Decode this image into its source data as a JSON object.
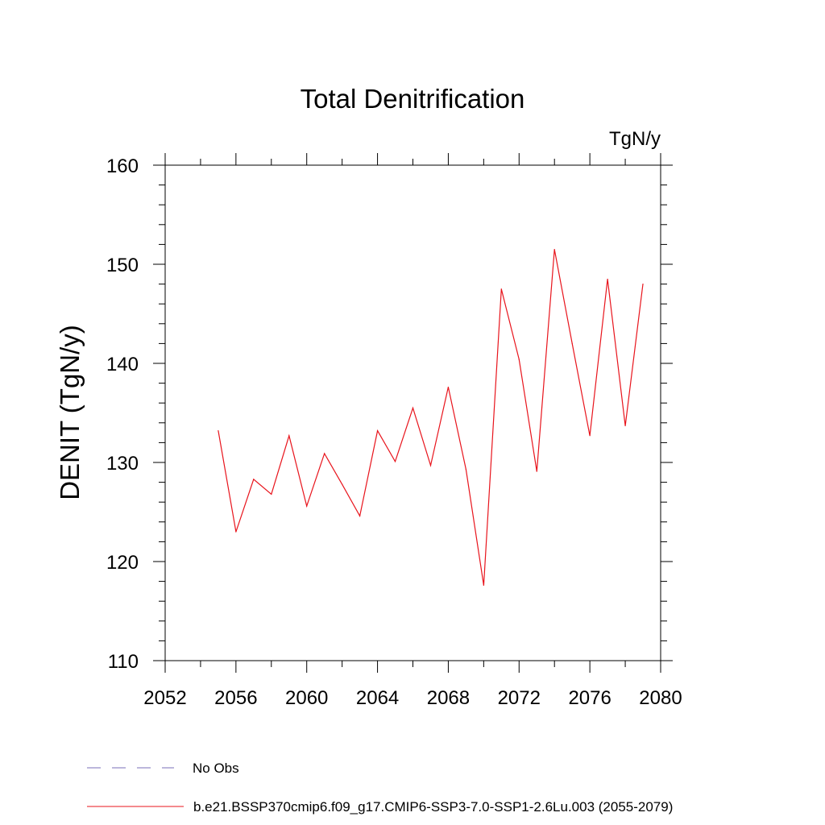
{
  "chart_data": {
    "type": "line",
    "title": "Total Denitrification",
    "units": "TgN/y",
    "ylabel": "DENIT  (TgN/y)",
    "xlabel": "",
    "xlim": [
      2052,
      2080
    ],
    "ylim": [
      110,
      160
    ],
    "x_major_ticks": [
      2052,
      2056,
      2060,
      2064,
      2068,
      2072,
      2076,
      2080
    ],
    "x_minor_ticks": [
      2054,
      2058,
      2062,
      2066,
      2070,
      2074,
      2078
    ],
    "x_tick_labels": [
      "2052",
      "2056",
      "2060",
      "2064",
      "2068",
      "2072",
      "2076",
      "2080"
    ],
    "y_major_ticks": [
      110,
      120,
      130,
      140,
      150,
      160
    ],
    "y_tick_labels": [
      "110",
      "120",
      "130",
      "140",
      "150",
      "160"
    ],
    "y_minor_step": 2,
    "grid": false,
    "series": [
      {
        "name": "b.e21.BSSP370cmip6.f09_g17.CMIP6-SSP3-7.0-SSP1-2.6Lu.003 (2055-2079)",
        "color": "#e8141c",
        "dash": "solid",
        "x": [
          2055,
          2056,
          2057,
          2058,
          2059,
          2060,
          2061,
          2062,
          2063,
          2064,
          2065,
          2066,
          2067,
          2068,
          2069,
          2070,
          2071,
          2072,
          2073,
          2074,
          2075,
          2076,
          2077,
          2078,
          2079
        ],
        "y": [
          133.2,
          123.0,
          128.3,
          126.8,
          132.7,
          125.6,
          130.9,
          127.8,
          124.6,
          133.2,
          130.1,
          135.5,
          129.7,
          137.6,
          129.3,
          117.6,
          147.5,
          140.4,
          129.1,
          151.5,
          142.0,
          132.7,
          148.5,
          133.7,
          148.0
        ]
      }
    ],
    "legend": {
      "placement": "bottom-left",
      "entries": [
        {
          "label": "No Obs",
          "color": "#7a6fb8",
          "dash": "dashed"
        },
        {
          "label": "b.e21.BSSP370cmip6.f09_g17.CMIP6-SSP3-7.0-SSP1-2.6Lu.003 (2055-2079)",
          "color": "#e8141c",
          "dash": "solid"
        }
      ]
    }
  }
}
